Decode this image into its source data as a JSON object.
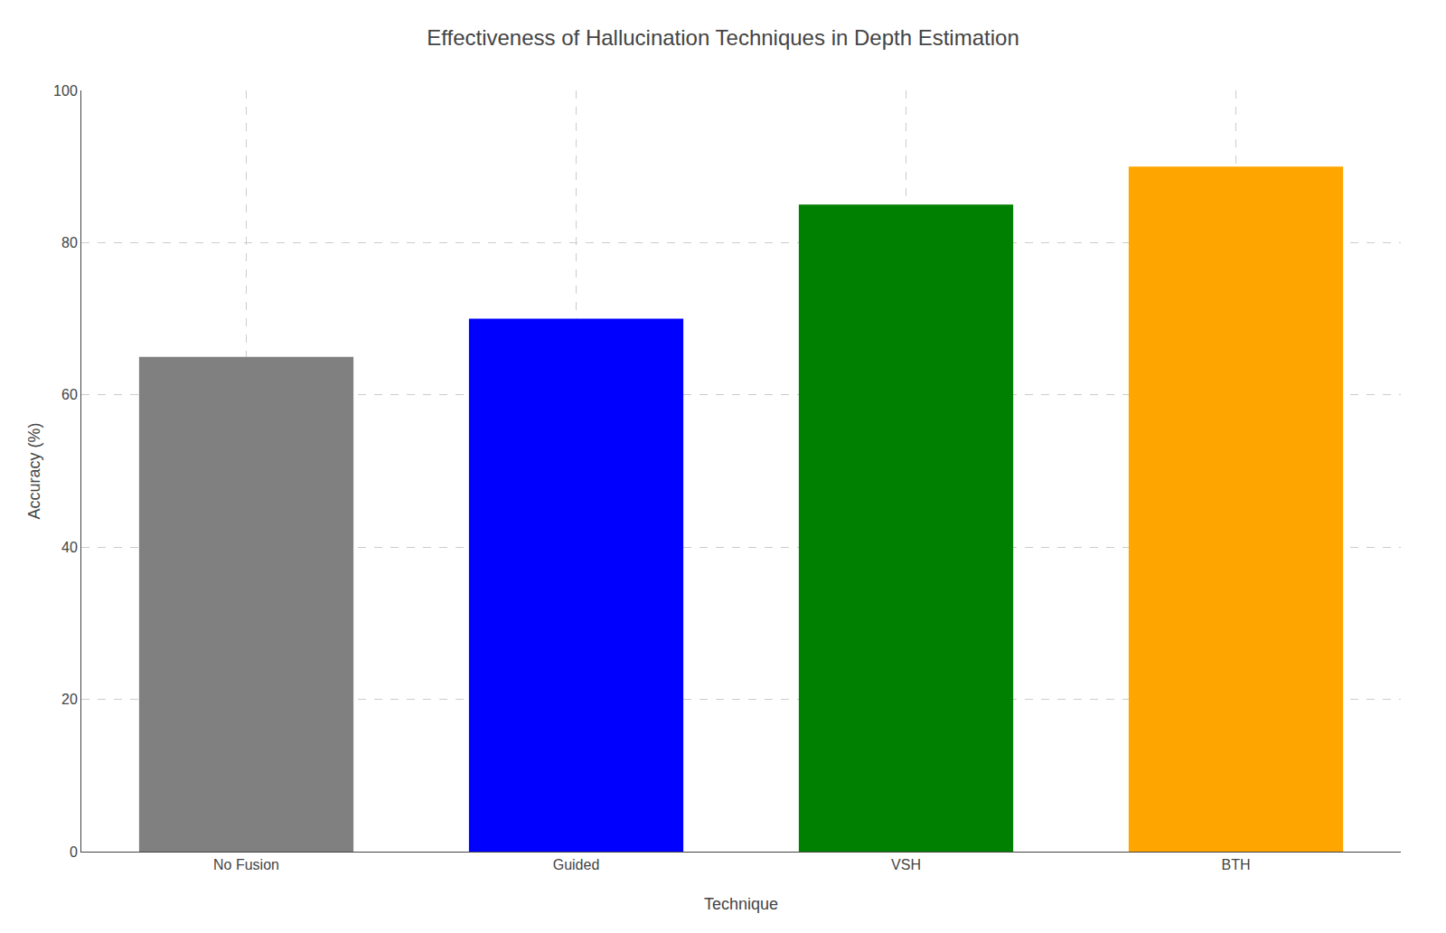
{
  "chart_data": {
    "type": "bar",
    "title": "Effectiveness of Hallucination Techniques in Depth Estimation",
    "xlabel": "Technique",
    "ylabel": "Accuracy (%)",
    "categories": [
      "No Fusion",
      "Guided",
      "VSH",
      "BTH"
    ],
    "values": [
      65,
      70,
      85,
      90
    ],
    "colors": [
      "#808080",
      "#0000ff",
      "#008000",
      "#ffa500"
    ],
    "ylim": [
      0,
      100
    ],
    "yticks": [
      0,
      20,
      40,
      60,
      80,
      100
    ],
    "grid": true
  }
}
